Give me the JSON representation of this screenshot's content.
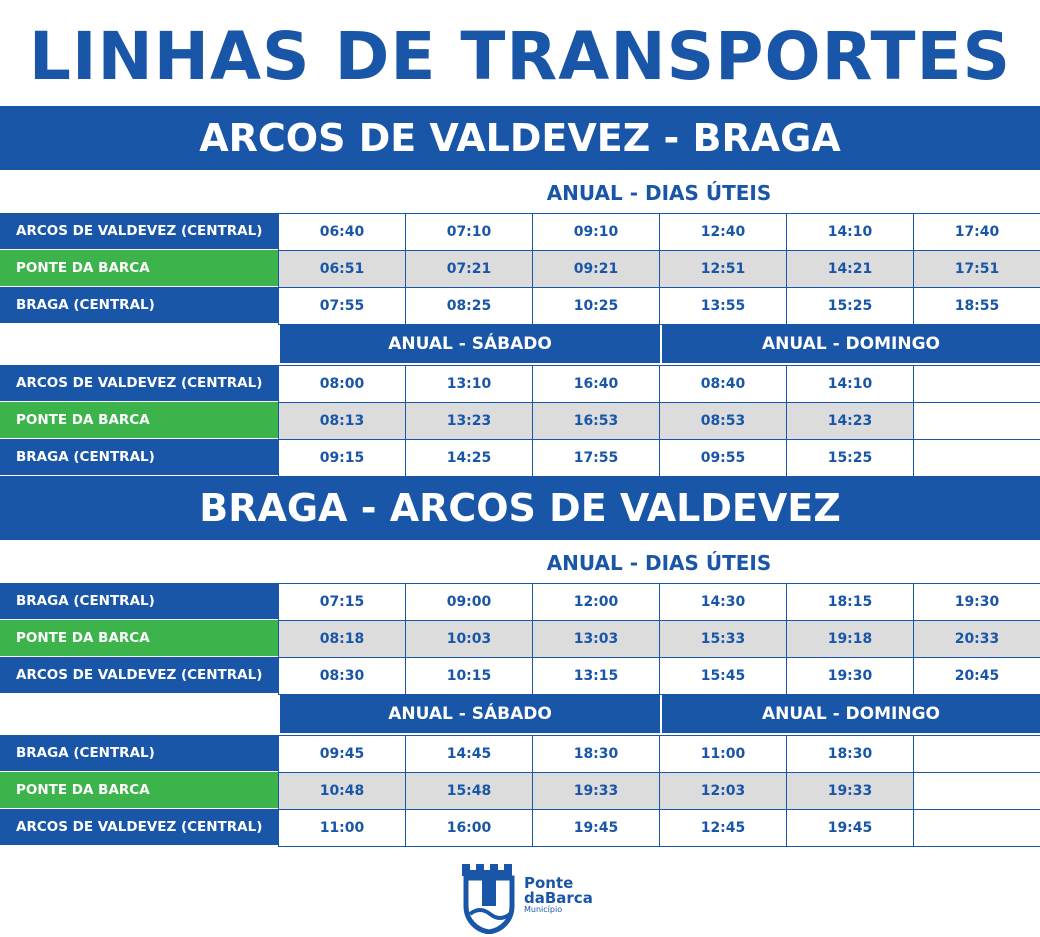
{
  "title": "LINHAS DE TRANSPORTES",
  "sections": [
    {
      "route": "ARCOS DE VALDEVEZ - BRAGA",
      "weekday": {
        "heading": "ANUAL - DIAS ÚTEIS",
        "rows": [
          {
            "stop": "ARCOS DE VALDEVEZ (CENTRAL)",
            "times": [
              "06:40",
              "07:10",
              "09:10",
              "12:40",
              "14:10",
              "17:40"
            ]
          },
          {
            "stop": "PONTE DA BARCA",
            "times": [
              "06:51",
              "07:21",
              "09:21",
              "12:51",
              "14:21",
              "17:51"
            ]
          },
          {
            "stop": "BRAGA (CENTRAL)",
            "times": [
              "07:55",
              "08:25",
              "10:25",
              "13:55",
              "15:25",
              "18:55"
            ]
          }
        ]
      },
      "weekend": {
        "saturday_heading": "ANUAL - SÁBADO",
        "sunday_heading": "ANUAL - DOMINGO",
        "rows": [
          {
            "stop": "ARCOS DE VALDEVEZ (CENTRAL)",
            "saturday": [
              "08:00",
              "13:10",
              "16:40"
            ],
            "sunday": [
              "08:40",
              "14:10"
            ]
          },
          {
            "stop": "PONTE DA BARCA",
            "saturday": [
              "08:13",
              "13:23",
              "16:53"
            ],
            "sunday": [
              "08:53",
              "14:23"
            ]
          },
          {
            "stop": "BRAGA (CENTRAL)",
            "saturday": [
              "09:15",
              "14:25",
              "17:55"
            ],
            "sunday": [
              "09:55",
              "15:25"
            ]
          }
        ]
      }
    },
    {
      "route": "BRAGA - ARCOS DE VALDEVEZ",
      "weekday": {
        "heading": "ANUAL - DIAS ÚTEIS",
        "rows": [
          {
            "stop": "BRAGA (CENTRAL)",
            "times": [
              "07:15",
              "09:00",
              "12:00",
              "14:30",
              "18:15",
              "19:30"
            ]
          },
          {
            "stop": "PONTE DA BARCA",
            "times": [
              "08:18",
              "10:03",
              "13:03",
              "15:33",
              "19:18",
              "20:33"
            ]
          },
          {
            "stop": "ARCOS DE VALDEVEZ (CENTRAL)",
            "times": [
              "08:30",
              "10:15",
              "13:15",
              "15:45",
              "19:30",
              "20:45"
            ]
          }
        ]
      },
      "weekend": {
        "saturday_heading": "ANUAL - SÁBADO",
        "sunday_heading": "ANUAL - DOMINGO",
        "rows": [
          {
            "stop": "BRAGA (CENTRAL)",
            "saturday": [
              "09:45",
              "14:45",
              "18:30"
            ],
            "sunday": [
              "11:00",
              "18:30"
            ]
          },
          {
            "stop": "PONTE DA BARCA",
            "saturday": [
              "10:48",
              "15:48",
              "19:33"
            ],
            "sunday": [
              "12:03",
              "19:33"
            ]
          },
          {
            "stop": "ARCOS DE VALDEVEZ (CENTRAL)",
            "saturday": [
              "11:00",
              "16:00",
              "19:45"
            ],
            "sunday": [
              "12:45",
              "19:45"
            ]
          }
        ]
      }
    }
  ],
  "logo": {
    "line1": "Ponte",
    "line2": "daBarca",
    "line3": "Município"
  }
}
